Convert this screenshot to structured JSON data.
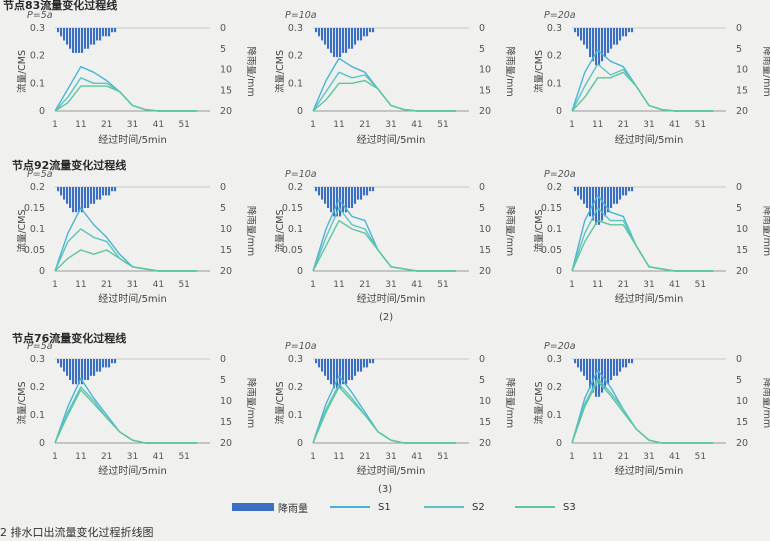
{
  "sections": [
    {
      "title": "节点83流量变化过程线",
      "sub_label": ""
    },
    {
      "title": "节点92流量变化过程线",
      "sub_label": "(2)"
    },
    {
      "title": "节点76流量变化过程线",
      "sub_label": "(3)"
    }
  ],
  "legend": [
    {
      "label": "降雨量",
      "color": "#3a6fc4",
      "kind": "bar"
    },
    {
      "label": "S1",
      "color": "#4ab4d6",
      "kind": "line"
    },
    {
      "label": "S2",
      "color": "#5cc4c0",
      "kind": "line"
    },
    {
      "label": "S3",
      "color": "#5cc79a",
      "kind": "line"
    }
  ],
  "caption": "2  排水口出流量变化过程折线图",
  "chart_data": [
    {
      "type": "line",
      "title": "P=5a",
      "xlabel": "经过时间/5min",
      "ylabel": "流量/CMS",
      "y2label": "降雨量/mm",
      "x": [
        1,
        6,
        11,
        16,
        21,
        26,
        31,
        36,
        41,
        46,
        51,
        56
      ],
      "xticks": [
        1,
        11,
        21,
        31,
        41,
        51
      ],
      "xlim": [
        1,
        61
      ],
      "ylim": [
        0,
        0.3
      ],
      "yticks": [
        0,
        0.1,
        0.2,
        0.3
      ],
      "y2lim": [
        20,
        0
      ],
      "y2ticks": [
        0,
        5,
        10,
        15,
        20
      ],
      "rain": [
        1,
        2,
        3,
        4,
        5,
        6,
        6,
        6,
        6,
        5,
        5,
        4,
        4,
        3,
        3,
        2,
        2,
        2,
        1,
        1
      ],
      "series": [
        {
          "name": "S1",
          "values": [
            0,
            0.08,
            0.16,
            0.14,
            0.11,
            0.07,
            0.02,
            0.005,
            0,
            0,
            0,
            0
          ]
        },
        {
          "name": "S2",
          "values": [
            0,
            0.05,
            0.12,
            0.1,
            0.1,
            0.07,
            0.02,
            0.005,
            0,
            0,
            0,
            0
          ]
        },
        {
          "name": "S3",
          "values": [
            0,
            0.03,
            0.09,
            0.09,
            0.09,
            0.07,
            0.02,
            0.005,
            0,
            0,
            0,
            0
          ]
        }
      ]
    },
    {
      "type": "line",
      "title": "P=10a",
      "xlabel": "经过时间/5min",
      "ylabel": "流量/CMS",
      "y2label": "降雨量/mm",
      "x": [
        1,
        6,
        11,
        16,
        21,
        26,
        31,
        36,
        41,
        46,
        51,
        56
      ],
      "xticks": [
        1,
        11,
        21,
        31,
        41,
        51
      ],
      "xlim": [
        1,
        61
      ],
      "ylim": [
        0,
        0.3
      ],
      "yticks": [
        0,
        0.1,
        0.2,
        0.3
      ],
      "y2lim": [
        20,
        0
      ],
      "y2ticks": [
        0,
        5,
        10,
        15,
        20
      ],
      "rain": [
        1,
        2,
        3,
        4,
        5,
        6,
        7,
        7,
        7,
        6,
        6,
        5,
        5,
        4,
        3,
        3,
        2,
        2,
        1,
        1
      ],
      "series": [
        {
          "name": "S1",
          "values": [
            0,
            0.11,
            0.19,
            0.16,
            0.14,
            0.08,
            0.02,
            0.005,
            0,
            0,
            0,
            0
          ]
        },
        {
          "name": "S2",
          "values": [
            0,
            0.07,
            0.14,
            0.12,
            0.13,
            0.08,
            0.02,
            0.005,
            0,
            0,
            0,
            0
          ]
        },
        {
          "name": "S3",
          "values": [
            0,
            0.04,
            0.1,
            0.1,
            0.11,
            0.08,
            0.02,
            0.005,
            0,
            0,
            0,
            0
          ]
        }
      ]
    },
    {
      "type": "line",
      "title": "P=20a",
      "xlabel": "经过时间/5min",
      "ylabel": "流量/CMS",
      "y2label": "降雨量/mm",
      "x": [
        1,
        6,
        11,
        16,
        21,
        26,
        31,
        36,
        41,
        46,
        51,
        56
      ],
      "xticks": [
        1,
        11,
        21,
        31,
        41,
        51
      ],
      "xlim": [
        1,
        61
      ],
      "ylim": [
        0,
        0.3
      ],
      "yticks": [
        0,
        0.1,
        0.2,
        0.3
      ],
      "y2lim": [
        20,
        0
      ],
      "y2ticks": [
        0,
        5,
        10,
        15,
        20
      ],
      "rain": [
        1,
        2,
        3,
        4,
        5,
        7,
        8,
        9,
        9,
        8,
        7,
        6,
        5,
        4,
        4,
        3,
        2,
        2,
        1,
        1
      ],
      "series": [
        {
          "name": "S1",
          "values": [
            0,
            0.14,
            0.22,
            0.18,
            0.16,
            0.09,
            0.02,
            0.005,
            0,
            0,
            0,
            0
          ]
        },
        {
          "name": "S2",
          "values": [
            0,
            0.09,
            0.17,
            0.13,
            0.15,
            0.09,
            0.02,
            0.005,
            0,
            0,
            0,
            0
          ]
        },
        {
          "name": "S3",
          "values": [
            0,
            0.05,
            0.12,
            0.12,
            0.14,
            0.09,
            0.02,
            0.005,
            0,
            0,
            0,
            0
          ]
        }
      ]
    },
    {
      "type": "line",
      "title": "P=5a",
      "xlabel": "经过时间/5min",
      "ylabel": "流量/CMS",
      "y2label": "降雨量/mm",
      "x": [
        1,
        6,
        11,
        16,
        21,
        26,
        31,
        36,
        41,
        46,
        51,
        56
      ],
      "xticks": [
        1,
        11,
        21,
        31,
        41,
        51
      ],
      "xlim": [
        1,
        61
      ],
      "ylim": [
        0,
        0.2
      ],
      "yticks": [
        0,
        0.05,
        0.1,
        0.15,
        0.2
      ],
      "y2lim": [
        20,
        0
      ],
      "y2ticks": [
        0,
        5,
        10,
        15,
        20
      ],
      "rain": [
        1,
        2,
        3,
        4,
        5,
        6,
        6,
        6,
        6,
        5,
        5,
        4,
        4,
        3,
        3,
        2,
        2,
        2,
        1,
        1
      ],
      "series": [
        {
          "name": "S1",
          "values": [
            0,
            0.09,
            0.15,
            0.11,
            0.08,
            0.04,
            0.01,
            0.005,
            0,
            0,
            0,
            0
          ]
        },
        {
          "name": "S2",
          "values": [
            0,
            0.07,
            0.1,
            0.08,
            0.07,
            0.03,
            0.01,
            0.005,
            0,
            0,
            0,
            0
          ]
        },
        {
          "name": "S3",
          "values": [
            0,
            0.03,
            0.05,
            0.04,
            0.05,
            0.03,
            0.01,
            0.005,
            0,
            0,
            0,
            0
          ]
        }
      ]
    },
    {
      "type": "line",
      "title": "P=10a",
      "xlabel": "经过时间/5min",
      "ylabel": "流量/CMS",
      "y2label": "降雨量/mm",
      "x": [
        1,
        6,
        11,
        16,
        21,
        26,
        31,
        36,
        41,
        46,
        51,
        56
      ],
      "xticks": [
        1,
        11,
        21,
        31,
        41,
        51
      ],
      "xlim": [
        1,
        61
      ],
      "ylim": [
        0,
        0.2
      ],
      "yticks": [
        0,
        0.05,
        0.1,
        0.15,
        0.2
      ],
      "y2lim": [
        20,
        0
      ],
      "y2ticks": [
        0,
        5,
        10,
        15,
        20
      ],
      "rain": [
        1,
        2,
        3,
        4,
        5,
        6,
        7,
        7,
        7,
        6,
        6,
        5,
        5,
        4,
        3,
        3,
        2,
        2,
        1,
        1
      ],
      "series": [
        {
          "name": "S1",
          "values": [
            0,
            0.1,
            0.17,
            0.13,
            0.12,
            0.05,
            0.01,
            0.005,
            0,
            0,
            0,
            0
          ]
        },
        {
          "name": "S2",
          "values": [
            0,
            0.08,
            0.15,
            0.11,
            0.1,
            0.05,
            0.01,
            0.005,
            0,
            0,
            0,
            0
          ]
        },
        {
          "name": "S3",
          "values": [
            0,
            0.06,
            0.12,
            0.1,
            0.09,
            0.05,
            0.01,
            0.005,
            0,
            0,
            0,
            0
          ]
        }
      ]
    },
    {
      "type": "line",
      "title": "P=20a",
      "xlabel": "经过时间/5min",
      "ylabel": "流量/CMS",
      "y2label": "降雨量/mm",
      "x": [
        1,
        6,
        11,
        16,
        21,
        26,
        31,
        36,
        41,
        46,
        51,
        56
      ],
      "xticks": [
        1,
        11,
        21,
        31,
        41,
        51
      ],
      "xlim": [
        1,
        61
      ],
      "ylim": [
        0,
        0.2
      ],
      "yticks": [
        0,
        0.05,
        0.1,
        0.15,
        0.2
      ],
      "y2lim": [
        20,
        0
      ],
      "y2ticks": [
        0,
        5,
        10,
        15,
        20
      ],
      "rain": [
        1,
        2,
        3,
        4,
        5,
        7,
        8,
        9,
        9,
        8,
        7,
        6,
        5,
        4,
        4,
        3,
        2,
        2,
        1,
        1
      ],
      "series": [
        {
          "name": "S1",
          "values": [
            0,
            0.12,
            0.18,
            0.14,
            0.13,
            0.06,
            0.01,
            0.005,
            0,
            0,
            0,
            0
          ]
        },
        {
          "name": "S2",
          "values": [
            0,
            0.09,
            0.15,
            0.12,
            0.12,
            0.06,
            0.01,
            0.005,
            0,
            0,
            0,
            0
          ]
        },
        {
          "name": "S3",
          "values": [
            0,
            0.07,
            0.12,
            0.11,
            0.11,
            0.06,
            0.01,
            0.005,
            0,
            0,
            0,
            0
          ]
        }
      ]
    },
    {
      "type": "line",
      "title": "P=5a",
      "xlabel": "经过时间/5min",
      "ylabel": "流量/CMS",
      "y2label": "降雨量/mm",
      "x": [
        1,
        6,
        11,
        16,
        21,
        26,
        31,
        36,
        41,
        46,
        51,
        56
      ],
      "xticks": [
        1,
        11,
        21,
        31,
        41,
        51
      ],
      "xlim": [
        1,
        61
      ],
      "ylim": [
        0,
        0.3
      ],
      "yticks": [
        0,
        0.1,
        0.2,
        0.3
      ],
      "y2lim": [
        20,
        0
      ],
      "y2ticks": [
        0,
        5,
        10,
        15,
        20
      ],
      "rain": [
        1,
        2,
        3,
        4,
        5,
        6,
        6,
        6,
        6,
        5,
        5,
        4,
        4,
        3,
        3,
        2,
        2,
        2,
        1,
        1
      ],
      "series": [
        {
          "name": "S1",
          "values": [
            0,
            0.13,
            0.23,
            0.16,
            0.1,
            0.04,
            0.01,
            0,
            0,
            0,
            0,
            0
          ]
        },
        {
          "name": "S2",
          "values": [
            0,
            0.11,
            0.2,
            0.15,
            0.09,
            0.04,
            0.01,
            0,
            0,
            0,
            0,
            0
          ]
        },
        {
          "name": "S3",
          "values": [
            0,
            0.1,
            0.19,
            0.14,
            0.09,
            0.04,
            0.01,
            0,
            0,
            0,
            0,
            0
          ]
        }
      ]
    },
    {
      "type": "line",
      "title": "P=10a",
      "xlabel": "经过时间/5min",
      "ylabel": "流量/CMS",
      "y2label": "降雨量/mm",
      "x": [
        1,
        6,
        11,
        16,
        21,
        26,
        31,
        36,
        41,
        46,
        51,
        56
      ],
      "xticks": [
        1,
        11,
        21,
        31,
        41,
        51
      ],
      "xlim": [
        1,
        61
      ],
      "ylim": [
        0,
        0.3
      ],
      "yticks": [
        0,
        0.1,
        0.2,
        0.3
      ],
      "y2lim": [
        20,
        0
      ],
      "y2ticks": [
        0,
        5,
        10,
        15,
        20
      ],
      "rain": [
        1,
        2,
        3,
        4,
        5,
        6,
        7,
        7,
        7,
        6,
        6,
        5,
        5,
        4,
        3,
        3,
        2,
        2,
        1,
        1
      ],
      "series": [
        {
          "name": "S1",
          "values": [
            0,
            0.14,
            0.24,
            0.18,
            0.11,
            0.04,
            0.01,
            0,
            0,
            0,
            0,
            0
          ]
        },
        {
          "name": "S2",
          "values": [
            0,
            0.12,
            0.21,
            0.16,
            0.1,
            0.04,
            0.01,
            0,
            0,
            0,
            0,
            0
          ]
        },
        {
          "name": "S3",
          "values": [
            0,
            0.11,
            0.2,
            0.15,
            0.1,
            0.04,
            0.01,
            0,
            0,
            0,
            0,
            0
          ]
        }
      ]
    },
    {
      "type": "line",
      "title": "P=20a",
      "xlabel": "经过时间/5min",
      "ylabel": "流量/CMS",
      "y2label": "降雨量/mm",
      "x": [
        1,
        6,
        11,
        16,
        21,
        26,
        31,
        36,
        41,
        46,
        51,
        56
      ],
      "xticks": [
        1,
        11,
        21,
        31,
        41,
        51
      ],
      "xlim": [
        1,
        61
      ],
      "ylim": [
        0,
        0.3
      ],
      "yticks": [
        0,
        0.1,
        0.2,
        0.3
      ],
      "y2lim": [
        20,
        0
      ],
      "y2ticks": [
        0,
        5,
        10,
        15,
        20
      ],
      "rain": [
        1,
        2,
        3,
        4,
        5,
        7,
        8,
        9,
        9,
        8,
        7,
        6,
        5,
        4,
        4,
        3,
        2,
        2,
        1,
        1
      ],
      "series": [
        {
          "name": "S1",
          "values": [
            0,
            0.16,
            0.26,
            0.2,
            0.12,
            0.05,
            0.01,
            0,
            0,
            0,
            0,
            0
          ]
        },
        {
          "name": "S2",
          "values": [
            0,
            0.14,
            0.23,
            0.18,
            0.12,
            0.05,
            0.01,
            0,
            0,
            0,
            0,
            0
          ]
        },
        {
          "name": "S3",
          "values": [
            0,
            0.13,
            0.22,
            0.17,
            0.11,
            0.05,
            0.01,
            0,
            0,
            0,
            0,
            0
          ]
        }
      ]
    }
  ]
}
